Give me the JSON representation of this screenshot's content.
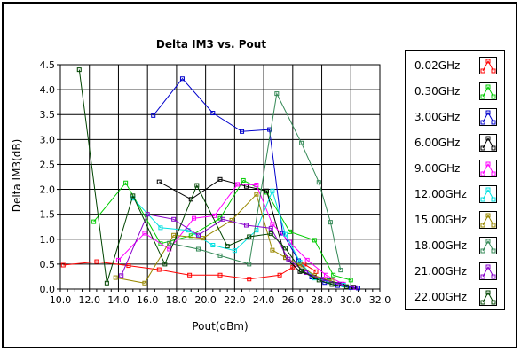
{
  "chart_data": {
    "type": "line",
    "title": "Delta IM3 vs. Pout",
    "xlabel": "Pout(dBm)",
    "ylabel": "Delta IM3(dB)",
    "xlim": [
      10.0,
      32.0
    ],
    "ylim": [
      0.0,
      4.5
    ],
    "xticks": [
      "10.0",
      "12.0",
      "14.0",
      "16.0",
      "18.0",
      "20.0",
      "22.0",
      "24.0",
      "26.0",
      "28.0",
      "30.0",
      "32.0"
    ],
    "yticks": [
      "0.0",
      "0.5",
      "1.0",
      "1.5",
      "2.0",
      "2.5",
      "3.0",
      "3.5",
      "4.0",
      "4.5"
    ],
    "grid": true,
    "legend_position": "right",
    "series": [
      {
        "name": "0.02GHz",
        "color": "#ff0000",
        "x": [
          10.2,
          12.5,
          14.7,
          16.8,
          18.9,
          21.0,
          23.0,
          25.1,
          26.0,
          26.8,
          27.6
        ],
        "y": [
          0.48,
          0.55,
          0.47,
          0.39,
          0.28,
          0.28,
          0.2,
          0.28,
          0.44,
          0.5,
          0.35
        ]
      },
      {
        "name": "0.30GHz",
        "color": "#00cc00",
        "x": [
          12.3,
          14.5,
          16.9,
          19.0,
          21.0,
          22.6,
          24.2,
          25.8,
          27.5,
          28.8,
          30.0
        ],
        "y": [
          1.35,
          2.13,
          0.91,
          1.07,
          1.42,
          2.18,
          1.94,
          1.15,
          0.98,
          0.28,
          0.18
        ]
      },
      {
        "name": "3.00GHz",
        "color": "#0000cc",
        "x": [
          16.4,
          18.4,
          20.5,
          22.5,
          24.4,
          25.3,
          26.4,
          27.3,
          28.2,
          29.1,
          30.0,
          30.5
        ],
        "y": [
          3.48,
          4.22,
          3.53,
          3.16,
          3.2,
          1.12,
          0.57,
          0.24,
          0.13,
          0.07,
          0.03,
          0.02
        ]
      },
      {
        "name": "6.00GHz",
        "color": "#000000",
        "x": [
          16.8,
          19.0,
          21.0,
          22.8,
          24.2,
          25.5,
          26.5,
          27.5,
          28.5,
          29.4,
          30.2
        ],
        "y": [
          2.15,
          1.8,
          2.2,
          2.06,
          1.97,
          0.63,
          0.35,
          0.24,
          0.17,
          0.1,
          0.04
        ]
      },
      {
        "name": "9.00GHz",
        "color": "#ff00ff",
        "x": [
          14.0,
          15.8,
          17.5,
          19.2,
          20.6,
          22.2,
          23.5,
          24.6,
          25.8,
          27.0,
          28.3,
          29.5
        ],
        "y": [
          0.58,
          1.12,
          0.8,
          1.42,
          1.47,
          2.1,
          2.09,
          1.3,
          0.94,
          0.58,
          0.28,
          0.1
        ]
      },
      {
        "name": "12.00GHz",
        "color": "#00e0e0",
        "x": [
          15.0,
          16.9,
          18.8,
          20.5,
          22.0,
          23.5,
          24.6,
          25.5,
          26.5,
          27.5,
          28.5,
          29.5
        ],
        "y": [
          1.82,
          1.23,
          1.18,
          0.88,
          0.77,
          1.18,
          1.97,
          1.1,
          0.54,
          0.22,
          0.16,
          0.08
        ]
      },
      {
        "name": "15.00GHz",
        "color": "#998800",
        "x": [
          13.8,
          15.8,
          17.8,
          19.8,
          21.8,
          23.5,
          24.6,
          25.5,
          26.5,
          27.5,
          28.7
        ],
        "y": [
          0.23,
          0.12,
          1.08,
          1.02,
          1.38,
          1.9,
          0.78,
          0.63,
          0.48,
          0.27,
          0.16
        ]
      },
      {
        "name": "18.00GHz",
        "color": "#338855",
        "x": [
          17.5,
          19.5,
          21.0,
          23.0,
          24.9,
          26.6,
          27.8,
          28.6,
          29.3
        ],
        "y": [
          0.92,
          0.8,
          0.67,
          0.5,
          3.92,
          2.93,
          2.14,
          1.34,
          0.38
        ]
      },
      {
        "name": "21.00GHz",
        "color": "#8800cc",
        "x": [
          14.2,
          16.0,
          17.8,
          19.5,
          21.2,
          22.8,
          24.5,
          25.7,
          26.9,
          28.0,
          29.2,
          30.3
        ],
        "y": [
          0.27,
          1.5,
          1.4,
          1.08,
          1.4,
          1.28,
          1.22,
          0.6,
          0.33,
          0.2,
          0.1,
          0.03
        ]
      },
      {
        "name": "22.00GHz",
        "color": "#004400",
        "x": [
          11.3,
          13.2,
          15.0,
          17.2,
          19.4,
          21.5,
          23.0,
          24.5,
          25.5,
          26.6,
          27.8,
          28.7,
          29.7
        ],
        "y": [
          4.4,
          0.12,
          1.87,
          0.5,
          2.08,
          0.86,
          1.05,
          1.11,
          0.82,
          0.37,
          0.18,
          0.09,
          0.05
        ]
      }
    ]
  }
}
